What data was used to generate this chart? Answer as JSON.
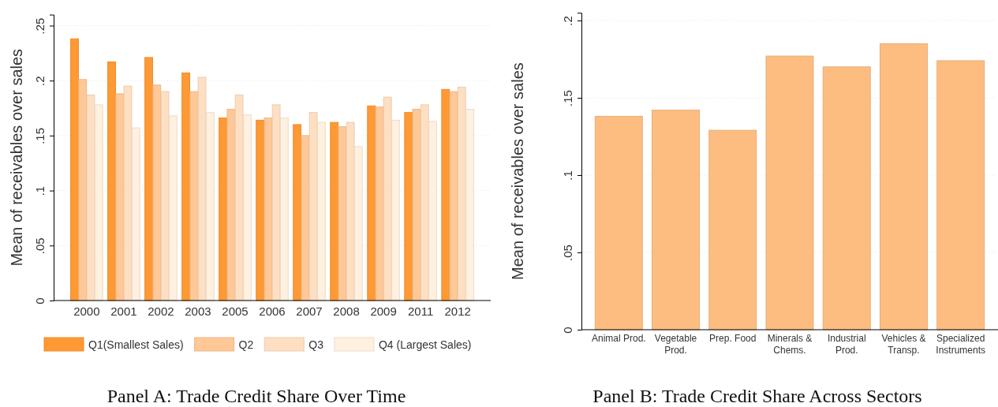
{
  "chart_data": [
    {
      "type": "bar",
      "title": "Panel A: Trade Credit Share Over Time",
      "ylabel": "Mean of receivables over sales",
      "categories": [
        "2000",
        "2001",
        "2002",
        "2003",
        "2005",
        "2006",
        "2007",
        "2008",
        "2009",
        "2011",
        "2012"
      ],
      "series": [
        {
          "name": "Q1(Smallest Sales)",
          "color": "#ff9933",
          "values": [
            0.238,
            0.217,
            0.221,
            0.207,
            0.166,
            0.164,
            0.16,
            0.162,
            0.177,
            0.171,
            0.192
          ]
        },
        {
          "name": "Q2",
          "color": "#ffc896",
          "values": [
            0.201,
            0.188,
            0.196,
            0.19,
            0.174,
            0.166,
            0.15,
            0.158,
            0.176,
            0.174,
            0.19
          ]
        },
        {
          "name": "Q3",
          "color": "#ffdfc2",
          "values": [
            0.187,
            0.195,
            0.19,
            0.203,
            0.187,
            0.178,
            0.171,
            0.162,
            0.185,
            0.178,
            0.194
          ]
        },
        {
          "name": "Q4 (Largest Sales)",
          "color": "#fff0e0",
          "values": [
            0.178,
            0.157,
            0.168,
            0.171,
            0.169,
            0.166,
            0.162,
            0.14,
            0.164,
            0.163,
            0.174
          ]
        }
      ],
      "ylim": [
        0,
        0.26
      ],
      "yticks": [
        0,
        {
          "value": 0.05,
          "label": ".05"
        },
        {
          "value": 0.1,
          "label": ".1"
        },
        {
          "value": 0.15,
          "label": ".15"
        },
        {
          "value": 0.2,
          "label": ".2"
        },
        {
          "value": 0.25,
          "label": ".25"
        }
      ],
      "grid": "y",
      "legend": "bottom"
    },
    {
      "type": "bar",
      "title": "Panel B: Trade Credit Share Across Sectors",
      "ylabel": "Mean of receivables over sales",
      "categories": [
        "Animal Prod.",
        "Vegetable Prod.",
        "Prep. Food",
        "Minerals & Chems.",
        "Industrial Prod.",
        "Vehicles & Transp.",
        "Specialized Instruments"
      ],
      "series": [
        {
          "color": "#fdbd80",
          "values": [
            0.138,
            0.142,
            0.129,
            0.177,
            0.17,
            0.185,
            0.174
          ]
        }
      ],
      "ylim": [
        0,
        0.205
      ],
      "yticks": [
        0,
        {
          "value": 0.05,
          "label": ".05"
        },
        {
          "value": 0.1,
          "label": ".1"
        },
        {
          "value": 0.15,
          "label": ".15"
        },
        {
          "value": 0.2,
          "label": ".2"
        }
      ],
      "grid": "y",
      "legend": false
    }
  ]
}
